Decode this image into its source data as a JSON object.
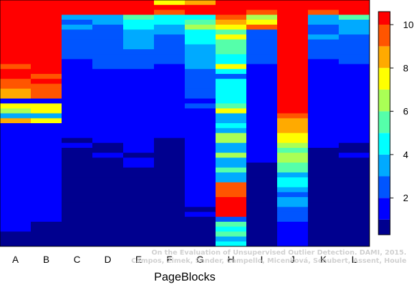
{
  "chart_data": {
    "type": "heatmap",
    "title": "",
    "xlabel": "PageBlocks",
    "ylabel": "",
    "grid": false,
    "columns": [
      "A",
      "B",
      "C",
      "D",
      "E",
      "F",
      "G",
      "H",
      "I",
      "J",
      "K",
      "L"
    ],
    "row_order": "top to bottom",
    "rows_per_column": 50,
    "value_range": [
      0.3,
      10.6
    ],
    "colorbar": {
      "ticks": [
        2,
        4,
        6,
        8,
        10
      ],
      "tick_labels": [
        "2",
        "4",
        "6",
        "8",
        "10"
      ],
      "levels": [
        0.3,
        1.0,
        2.0,
        3.0,
        4.0,
        5.0,
        6.0,
        7.0,
        8.0,
        9.0,
        10.0,
        10.6
      ],
      "colors": [
        "#00008f",
        "#0000ff",
        "#0055ff",
        "#00aaff",
        "#00ffff",
        "#55ffaa",
        "#aaff55",
        "#ffff00",
        "#ffaa00",
        "#ff5500",
        "#ff0000",
        "#800000"
      ]
    },
    "cells": [
      [
        10.4,
        10.4,
        10.4,
        10.4,
        10.4,
        10.4,
        10.4,
        10.4,
        10.4,
        10.4,
        10.4,
        10.4,
        10.4,
        9.8,
        10.4,
        10.2,
        9.6,
        9.9,
        8.1,
        8.1,
        1.8,
        7.7,
        6.6,
        3.2,
        8.3,
        1.7,
        1.7,
        1.7,
        1.7,
        1.7,
        1.7,
        1.6,
        1.6,
        1.6,
        1.6,
        1.4,
        1.5,
        1.3,
        1.4,
        1.1,
        1.3,
        1.3,
        1.1,
        1.1,
        1.1,
        1.0,
        1.0,
        0.8,
        0.8,
        0.8
      ],
      [
        10.4,
        10.4,
        10.4,
        10.4,
        10.4,
        10.4,
        10.4,
        10.4,
        10.4,
        10.4,
        10.4,
        10.4,
        10.4,
        10.4,
        10.4,
        9.8,
        10.2,
        9.6,
        9.4,
        9.2,
        1.6,
        7.6,
        7.2,
        3.5,
        7.5,
        1.7,
        1.7,
        1.7,
        1.7,
        1.7,
        1.5,
        1.6,
        1.5,
        1.5,
        1.4,
        1.3,
        1.4,
        1.3,
        1.1,
        1.1,
        1.3,
        1.2,
        1.1,
        1.1,
        1.0,
        0.8,
        0.8,
        0.8,
        0.7,
        0.7
      ],
      [
        10.4,
        10.4,
        10.4,
        3.4,
        2.8,
        3.1,
        2.5,
        2.6,
        2.5,
        2.8,
        2.5,
        2.1,
        1.9,
        1.8,
        1.6,
        1.8,
        1.8,
        1.5,
        1.5,
        1.1,
        1.1,
        1.0,
        1.1,
        1.1,
        1.1,
        1.1,
        1.0,
        1.1,
        0.8,
        1.0,
        0.9,
        0.9,
        0.9,
        0.8,
        0.9,
        0.8,
        0.8,
        0.8,
        0.8,
        0.6,
        0.5,
        0.5,
        0.5,
        0.6,
        0.4,
        0.5,
        0.4,
        0.4,
        0.4,
        0.4
      ],
      [
        10.4,
        10.4,
        10.4,
        3.5,
        3.4,
        2.9,
        2.8,
        2.9,
        2.8,
        2.9,
        2.6,
        2.2,
        2.0,
        2.2,
        1.8,
        1.8,
        1.7,
        1.7,
        1.7,
        1.3,
        1.3,
        1.3,
        1.2,
        1.1,
        1.1,
        1.1,
        1.1,
        1.1,
        1.1,
        0.9,
        0.9,
        1.0,
        0.9,
        0.8,
        0.8,
        0.8,
        0.8,
        0.8,
        0.6,
        0.6,
        0.5,
        0.5,
        0.5,
        0.4,
        0.4,
        0.4,
        0.4,
        0.4,
        0.4,
        0.4
      ],
      [
        10.4,
        10.4,
        10.4,
        5.2,
        4.6,
        4.1,
        3.2,
        3.2,
        3.2,
        3.0,
        2.8,
        2.5,
        2.3,
        2.3,
        1.8,
        1.8,
        1.7,
        1.8,
        1.7,
        1.4,
        1.5,
        1.3,
        1.3,
        1.1,
        1.1,
        1.1,
        1.1,
        1.0,
        1.0,
        1.0,
        1.0,
        0.9,
        1.0,
        1.0,
        0.8,
        0.8,
        0.8,
        0.7,
        0.6,
        0.7,
        0.5,
        0.5,
        0.5,
        0.4,
        0.4,
        0.4,
        0.3,
        0.4,
        0.4,
        0.4
      ],
      [
        7.2,
        10.2,
        9.8,
        4.3,
        4.2,
        3.3,
        3.0,
        2.9,
        2.7,
        2.8,
        2.3,
        2.2,
        2.0,
        1.8,
        1.8,
        1.8,
        1.8,
        1.5,
        1.7,
        1.5,
        1.0,
        1.2,
        1.0,
        1.1,
        1.1,
        1.1,
        1.0,
        1.1,
        0.8,
        0.9,
        0.9,
        0.9,
        0.9,
        0.9,
        0.8,
        0.9,
        0.8,
        0.8,
        0.8,
        0.6,
        0.5,
        0.5,
        0.5,
        0.5,
        0.4,
        0.4,
        0.4,
        0.4,
        0.4,
        0.4
      ],
      [
        8.9,
        10.2,
        10.4,
        4.6,
        5.4,
        6.1,
        4.5,
        4.2,
        4.2,
        3.5,
        3.3,
        3.6,
        3.0,
        3.2,
        2.9,
        2.8,
        2.4,
        2.2,
        2.2,
        2.2,
        1.9,
        2.0,
        1.7,
        1.5,
        1.8,
        1.7,
        1.7,
        1.5,
        1.4,
        1.5,
        1.4,
        1.3,
        1.3,
        1.3,
        1.3,
        1.3,
        1.3,
        1.1,
        1.1,
        1.2,
        1.1,
        1.0,
        0.9,
        1.0,
        0.8,
        0.8,
        0.8,
        0.8,
        0.8,
        0.8
      ],
      [
        10.4,
        10.4,
        10.2,
        9.9,
        8.5,
        7.0,
        5.8,
        7.4,
        5.1,
        5.2,
        5.2,
        4.9,
        4.5,
        7.6,
        4.7,
        2.6,
        4.2,
        4.1,
        4.6,
        4.5,
        4.8,
        5.2,
        7.5,
        3.8,
        3.5,
        4.1,
        3.7,
        6.6,
        6.3,
        3.8,
        3.7,
        6.2,
        3.2,
        3.8,
        5.8,
        3.9,
        3.6,
        9.3,
        9.3,
        9.1,
        10.1,
        10.4,
        10.4,
        10.4,
        2.2,
        5.3,
        4.4,
        5.3,
        3.5,
        4.0
      ],
      [
        10.4,
        10.4,
        9.8,
        6.5,
        7.0,
        9.3,
        2.8,
        2.9,
        2.6,
        2.6,
        2.5,
        2.3,
        2.2,
        1.8,
        1.8,
        1.6,
        1.8,
        1.5,
        1.5,
        1.5,
        1.3,
        1.3,
        1.1,
        1.3,
        1.4,
        1.3,
        1.3,
        1.3,
        1.1,
        1.1,
        1.1,
        1.0,
        1.0,
        0.8,
        0.8,
        0.9,
        0.8,
        0.9,
        0.6,
        0.6,
        0.5,
        0.6,
        0.5,
        0.5,
        0.4,
        0.5,
        0.4,
        0.4,
        0.4,
        0.4
      ],
      [
        10.4,
        10.4,
        10.4,
        10.4,
        10.4,
        10.4,
        10.4,
        10.4,
        10.4,
        10.4,
        10.4,
        10.4,
        10.4,
        10.4,
        10.4,
        10.4,
        10.4,
        10.4,
        10.4,
        10.4,
        10.4,
        10.4,
        10.2,
        9.6,
        8.9,
        8.7,
        8.4,
        7.6,
        7.6,
        6.9,
        5.7,
        6.8,
        6.4,
        5.3,
        5.7,
        3.9,
        4.6,
        4.8,
        3.7,
        2.7,
        3.0,
        3.1,
        2.5,
        2.3,
        2.2,
        1.6,
        1.7,
        1.3,
        1.4,
        1.1
      ],
      [
        10.4,
        10.4,
        9.3,
        3.4,
        3.2,
        2.8,
        2.8,
        3.1,
        2.5,
        2.6,
        2.2,
        2.2,
        1.9,
        1.9,
        1.8,
        1.8,
        1.7,
        1.5,
        1.5,
        1.3,
        1.3,
        1.1,
        1.3,
        1.1,
        1.1,
        1.1,
        1.1,
        1.1,
        1.0,
        1.0,
        0.9,
        0.9,
        0.8,
        0.8,
        0.8,
        0.8,
        0.8,
        0.8,
        0.7,
        0.5,
        0.6,
        0.5,
        0.6,
        0.5,
        0.4,
        0.4,
        0.4,
        0.4,
        0.4,
        0.4
      ],
      [
        10.4,
        10.4,
        10.4,
        5.4,
        3.4,
        3.2,
        3.0,
        2.8,
        2.6,
        2.6,
        2.3,
        2.1,
        2.0,
        1.8,
        1.8,
        1.7,
        1.5,
        1.7,
        1.6,
        1.6,
        1.1,
        1.1,
        1.1,
        1.0,
        1.1,
        1.1,
        1.1,
        1.1,
        1.0,
        0.9,
        0.9,
        1.0,
        0.8,
        0.9,
        0.8,
        0.8,
        0.8,
        0.8,
        0.7,
        0.5,
        0.5,
        0.5,
        0.5,
        0.6,
        0.5,
        0.4,
        0.4,
        0.4,
        0.4,
        0.4
      ]
    ]
  },
  "watermark": {
    "line1": "On the Evaluation of Unsupervised Outlier Detection. DAMI, 2015.",
    "line2": "Campos, Zimek, Sander, Campello, Micenková, Schubert, Assent, Houle"
  }
}
